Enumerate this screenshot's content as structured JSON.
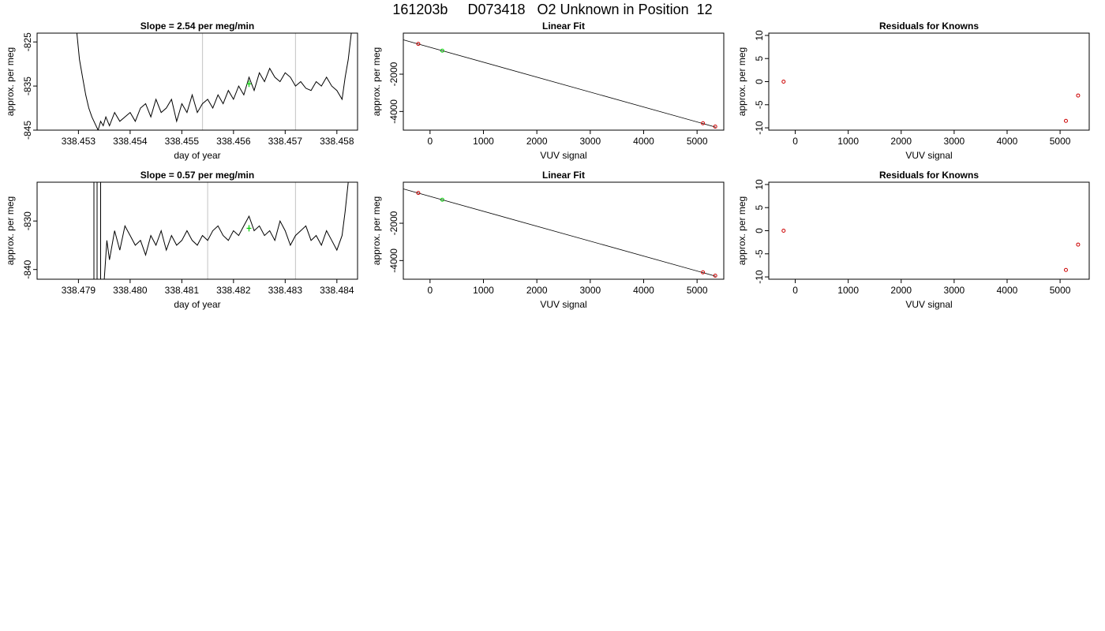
{
  "page_title": "161203b     D073418   O2 Unknown in Position  12",
  "colors": {
    "trace": "#000000",
    "marker_known": "#cc0000",
    "marker_unknown": "#00cc00",
    "window_line": "#cccccc"
  },
  "chart_data": [
    {
      "type": "line",
      "title": "Slope =  2.54  per meg/min",
      "xlabel": "day of year",
      "ylabel": "approx. per meg",
      "xlim": [
        338.4522,
        338.4584
      ],
      "ylim": [
        -845,
        -823
      ],
      "xticks": [
        338.453,
        338.454,
        338.455,
        338.456,
        338.457,
        338.458
      ],
      "xtick_labels": [
        "338.453",
        "338.454",
        "338.455",
        "338.456",
        "338.457",
        "338.458"
      ],
      "yticks": [
        -825,
        -835,
        -845
      ],
      "ytick_labels": [
        "-825",
        "-835",
        "-845"
      ],
      "vlines": [
        338.4554,
        338.4572
      ],
      "series": [
        {
          "x": [
            338.45297,
            338.45302,
            338.45308,
            338.45314,
            338.4532,
            338.45326,
            338.45332,
            338.45338,
            338.45343,
            338.45348,
            338.45353,
            338.4536,
            338.4537,
            338.4538,
            338.4539,
            338.454,
            338.4541,
            338.4542,
            338.4543,
            338.4544,
            338.4545,
            338.4546,
            338.4547,
            338.4548,
            338.4549,
            338.455,
            338.4551,
            338.4552,
            338.4553,
            338.4554,
            338.4555,
            338.4556,
            338.4557,
            338.4558,
            338.4559,
            338.456,
            338.4561,
            338.4562,
            338.4563,
            338.4564,
            338.4565,
            338.4566,
            338.4567,
            338.4568,
            338.4569,
            338.457,
            338.4571,
            338.4572,
            338.4573,
            338.4574,
            338.4575,
            338.4576,
            338.4577,
            338.4578,
            338.4579,
            338.458,
            338.4581,
            338.45816,
            338.45822,
            338.45828
          ],
          "y": [
            -823,
            -829,
            -833,
            -837,
            -840,
            -842,
            -843.5,
            -845,
            -843,
            -844,
            -842,
            -844,
            -841,
            -843,
            -842,
            -841,
            -843,
            -840,
            -839,
            -842,
            -838,
            -841,
            -840,
            -838,
            -843,
            -839,
            -841,
            -837,
            -841,
            -839,
            -838,
            -840,
            -837,
            -839,
            -836,
            -838,
            -835,
            -837,
            -833,
            -836,
            -832,
            -834,
            -831,
            -833,
            -834,
            -832,
            -833,
            -835,
            -834,
            -835.5,
            -836,
            -834,
            -835,
            -833,
            -835,
            -836,
            -838,
            -833,
            -829,
            -823
          ]
        }
      ],
      "markers": [
        {
          "x": 338.4563,
          "y": -834.5,
          "color": "unknown"
        }
      ]
    },
    {
      "type": "scatter",
      "title": "Linear Fit",
      "xlabel": "VUV signal",
      "ylabel": "approx. per meg",
      "xlim": [
        -500,
        5500
      ],
      "ylim": [
        -5000,
        200
      ],
      "xticks": [
        0,
        1000,
        2000,
        3000,
        4000,
        5000
      ],
      "xtick_labels": [
        "0",
        "1000",
        "2000",
        "3000",
        "4000",
        "5000"
      ],
      "yticks": [
        -2000,
        -4000
      ],
      "ytick_labels": [
        "-2000",
        "-4000"
      ],
      "fit_line": {
        "x": [
          -500,
          5350
        ],
        "y": [
          -160,
          -4840
        ]
      },
      "points": [
        {
          "x": -220,
          "y": -377,
          "color": "known"
        },
        {
          "x": 230,
          "y": -740,
          "color": "unknown"
        },
        {
          "x": 5110,
          "y": -4630,
          "color": "known"
        },
        {
          "x": 5340,
          "y": -4810,
          "color": "known"
        }
      ]
    },
    {
      "type": "scatter",
      "title": "Residuals for Knowns",
      "xlabel": "VUV signal",
      "ylabel": "approx. per meg",
      "xlim": [
        -500,
        5550
      ],
      "ylim": [
        -10.5,
        10.5
      ],
      "xticks": [
        0,
        1000,
        2000,
        3000,
        4000,
        5000
      ],
      "xtick_labels": [
        "0",
        "1000",
        "2000",
        "3000",
        "4000",
        "5000"
      ],
      "yticks": [
        10,
        5,
        0,
        -5,
        -10
      ],
      "ytick_labels": [
        "10",
        "5",
        "0",
        "-5",
        "-10"
      ],
      "points": [
        {
          "x": -220,
          "y": 0,
          "color": "known"
        },
        {
          "x": 5110,
          "y": -8.5,
          "color": "known"
        },
        {
          "x": 5340,
          "y": -3,
          "color": "known"
        }
      ]
    },
    {
      "type": "line",
      "title": "Slope =  0.57  per meg/min",
      "xlabel": "day of year",
      "ylabel": "approx. per meg",
      "xlim": [
        338.4782,
        338.4844
      ],
      "ylim": [
        -842,
        -822
      ],
      "xticks": [
        338.479,
        338.48,
        338.481,
        338.482,
        338.483,
        338.484
      ],
      "xtick_labels": [
        "338.479",
        "338.480",
        "338.481",
        "338.482",
        "338.483",
        "338.484"
      ],
      "yticks": [
        -830,
        -840
      ],
      "ytick_labels": [
        "-830",
        "-840"
      ],
      "vlines": [
        338.4815,
        338.4832
      ],
      "series": [
        {
          "x": [
            338.4793,
            338.4793,
            338.47936,
            338.47936,
            338.47943,
            338.47943,
            338.4795,
            338.47955,
            338.4796,
            338.4797,
            338.4798,
            338.4799,
            338.48,
            338.4801,
            338.4802,
            338.4803,
            338.4804,
            338.4805,
            338.4806,
            338.4807,
            338.4808,
            338.4809,
            338.481,
            338.4811,
            338.4812,
            338.4813,
            338.4814,
            338.4815,
            338.4816,
            338.4817,
            338.4818,
            338.4819,
            338.482,
            338.4821,
            338.4822,
            338.4823,
            338.4824,
            338.4825,
            338.4826,
            338.4827,
            338.4828,
            338.4829,
            338.483,
            338.4831,
            338.4832,
            338.4833,
            338.4834,
            338.4835,
            338.4836,
            338.4837,
            338.4838,
            338.4839,
            338.484,
            338.4841,
            338.48416,
            338.48422
          ],
          "y": [
            -822,
            -842,
            -842,
            -822,
            -822,
            -842,
            -842,
            -834,
            -838,
            -832,
            -836,
            -831,
            -833,
            -835,
            -834,
            -837,
            -833,
            -835,
            -832,
            -836,
            -833,
            -835,
            -834,
            -832,
            -834,
            -835,
            -833,
            -834,
            -832,
            -831,
            -833,
            -834,
            -832,
            -833,
            -831,
            -829,
            -832,
            -831,
            -833,
            -832,
            -834,
            -830,
            -832,
            -835,
            -833,
            -832,
            -831,
            -834,
            -833,
            -835,
            -832,
            -834,
            -836,
            -833,
            -828,
            -822
          ]
        }
      ],
      "markers": [
        {
          "x": 338.4823,
          "y": -831.5,
          "color": "unknown"
        }
      ]
    },
    {
      "type": "scatter",
      "title": "Linear Fit",
      "xlabel": "VUV signal",
      "ylabel": "approx. per meg",
      "xlim": [
        -500,
        5500
      ],
      "ylim": [
        -5000,
        200
      ],
      "xticks": [
        0,
        1000,
        2000,
        3000,
        4000,
        5000
      ],
      "xtick_labels": [
        "0",
        "1000",
        "2000",
        "3000",
        "4000",
        "5000"
      ],
      "yticks": [
        -2000,
        -4000
      ],
      "ytick_labels": [
        "-2000",
        "-4000"
      ],
      "fit_line": {
        "x": [
          -500,
          5350
        ],
        "y": [
          -160,
          -4840
        ]
      },
      "points": [
        {
          "x": -220,
          "y": -377,
          "color": "known"
        },
        {
          "x": 230,
          "y": -740,
          "color": "unknown"
        },
        {
          "x": 5110,
          "y": -4630,
          "color": "known"
        },
        {
          "x": 5340,
          "y": -4810,
          "color": "known"
        }
      ]
    },
    {
      "type": "scatter",
      "title": "Residuals for Knowns",
      "xlabel": "VUV signal",
      "ylabel": "approx. per meg",
      "xlim": [
        -500,
        5550
      ],
      "ylim": [
        -10.5,
        10.5
      ],
      "xticks": [
        0,
        1000,
        2000,
        3000,
        4000,
        5000
      ],
      "xtick_labels": [
        "0",
        "1000",
        "2000",
        "3000",
        "4000",
        "5000"
      ],
      "yticks": [
        10,
        5,
        0,
        -5,
        -10
      ],
      "ytick_labels": [
        "10",
        "5",
        "0",
        "-5",
        "-10"
      ],
      "points": [
        {
          "x": -220,
          "y": 0,
          "color": "known"
        },
        {
          "x": 5110,
          "y": -8.5,
          "color": "known"
        },
        {
          "x": 5340,
          "y": -3,
          "color": "known"
        }
      ]
    }
  ]
}
